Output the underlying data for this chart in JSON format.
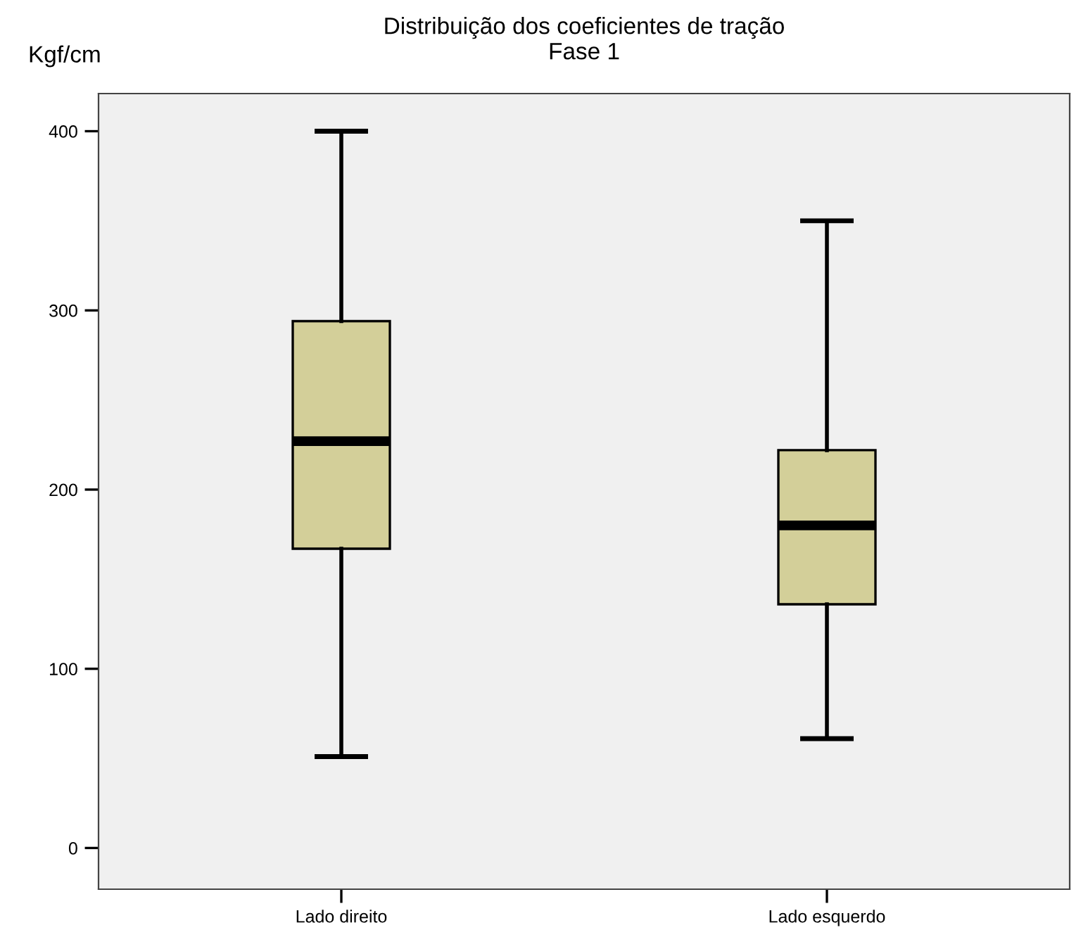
{
  "chart_data": {
    "type": "box",
    "title": "Distribuição dos coeficientes de tração\nFase 1",
    "ylabel": "Kgf/cm",
    "categories": [
      "Lado direito",
      "Lado esquerdo"
    ],
    "boxes": [
      {
        "low": 51,
        "q1": 167,
        "median": 227,
        "q3": 294,
        "high": 400
      },
      {
        "low": 61,
        "q1": 136,
        "median": 180,
        "q3": 222,
        "high": 350
      }
    ],
    "color": "#d3cf99",
    "ylim": [
      -23,
      421
    ],
    "yticks": [
      0,
      100,
      200,
      300,
      400
    ],
    "grid": false
  }
}
